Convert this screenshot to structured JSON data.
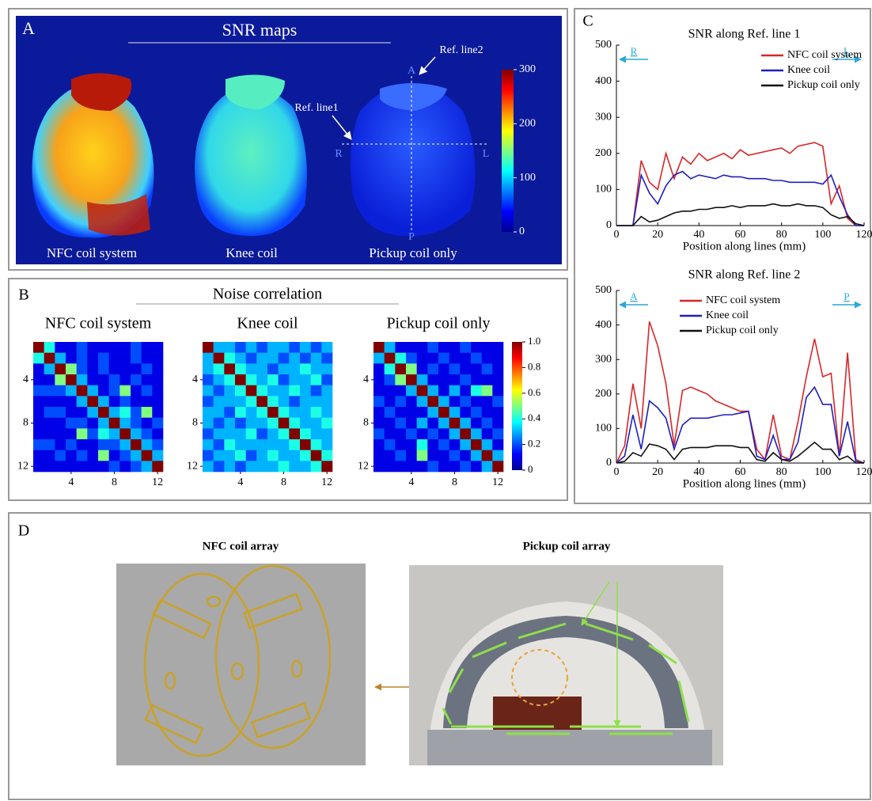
{
  "panel_a": {
    "label": "A",
    "title": "SNR maps",
    "image_labels": [
      "NFC coil system",
      "Knee coil",
      "Pickup coil only"
    ],
    "ref_line1": "Ref. line1",
    "ref_line2": "Ref. line2",
    "directions": [
      "A",
      "P",
      "R",
      "L"
    ],
    "colorbar": {
      "clim": [
        0,
        300
      ],
      "ticks": [
        0,
        100,
        200,
        300
      ]
    }
  },
  "panel_b": {
    "label": "B",
    "title": "Noise correlation",
    "colorbar": {
      "clim": [
        0,
        1
      ],
      "ticks": [
        0,
        0.2,
        0.4,
        0.6,
        0.8,
        {
          "value": 1,
          "label": "1.0"
        }
      ]
    }
  },
  "panel_c": {
    "label": "C"
  },
  "panel_d": {
    "label": "D",
    "left_title": "NFC coil array",
    "right_title": "Pickup coil array"
  },
  "chart_data": [
    {
      "type": "heatmap",
      "title": "NFC coil system",
      "xlim": [
        0.5,
        12.5
      ],
      "ylim": [
        0.5,
        12.5
      ],
      "xticks": [
        4,
        8,
        12
      ],
      "yticks": [
        4,
        8,
        12
      ],
      "values": [
        [
          1,
          0.4,
          0.1,
          0.1,
          0.2,
          0.1,
          0.1,
          0.1,
          0.1,
          0.2,
          0.1,
          0.1
        ],
        [
          0.4,
          1,
          0.3,
          0.1,
          0.2,
          0.1,
          0.2,
          0.1,
          0.1,
          0.2,
          0.1,
          0.1
        ],
        [
          0.1,
          0.3,
          1,
          0.5,
          0.2,
          0.1,
          0.2,
          0.1,
          0.1,
          0.1,
          0.2,
          0.1
        ],
        [
          0.1,
          0.1,
          0.5,
          1,
          0.3,
          0.1,
          0.1,
          0.2,
          0.1,
          0.2,
          0.1,
          0.1
        ],
        [
          0.2,
          0.2,
          0.2,
          0.3,
          1,
          0.3,
          0.1,
          0.2,
          0.5,
          0.1,
          0.2,
          0.1
        ],
        [
          0.1,
          0.1,
          0.1,
          0.1,
          0.3,
          1,
          0.3,
          0.1,
          0.2,
          0.1,
          0.1,
          0.1
        ],
        [
          0.1,
          0.2,
          0.2,
          0.1,
          0.1,
          0.3,
          1,
          0.3,
          0.4,
          0.2,
          0.5,
          0.1
        ],
        [
          0.1,
          0.1,
          0.1,
          0.2,
          0.2,
          0.1,
          0.3,
          1,
          0.3,
          0.2,
          0.1,
          0.2
        ],
        [
          0.1,
          0.1,
          0.1,
          0.1,
          0.5,
          0.2,
          0.4,
          0.3,
          1,
          0.3,
          0.2,
          0.1
        ],
        [
          0.2,
          0.2,
          0.1,
          0.2,
          0.1,
          0.1,
          0.2,
          0.2,
          0.3,
          1,
          0.3,
          0.2
        ],
        [
          0.1,
          0.1,
          0.2,
          0.1,
          0.2,
          0.1,
          0.5,
          0.1,
          0.2,
          0.3,
          1,
          0.3
        ],
        [
          0.1,
          0.1,
          0.1,
          0.1,
          0.1,
          0.1,
          0.1,
          0.2,
          0.1,
          0.2,
          0.3,
          1
        ]
      ]
    },
    {
      "type": "heatmap",
      "title": "Knee coil",
      "xlim": [
        0.5,
        12.5
      ],
      "ylim": [
        0.5,
        12.5
      ],
      "xticks": [
        4,
        8,
        12
      ],
      "yticks": [
        4,
        8,
        12
      ],
      "values": [
        [
          1,
          0.3,
          0.3,
          0.2,
          0.3,
          0.2,
          0.3,
          0.3,
          0.2,
          0.3,
          0.2,
          0.3
        ],
        [
          0.3,
          1,
          0.4,
          0.3,
          0.2,
          0.3,
          0.3,
          0.2,
          0.3,
          0.2,
          0.3,
          0.2
        ],
        [
          0.3,
          0.4,
          1,
          0.4,
          0.3,
          0.3,
          0.2,
          0.3,
          0.3,
          0.4,
          0.3,
          0.3
        ],
        [
          0.2,
          0.3,
          0.4,
          1,
          0.4,
          0.3,
          0.4,
          0.2,
          0.3,
          0.3,
          0.4,
          0.2
        ],
        [
          0.3,
          0.2,
          0.3,
          0.4,
          1,
          0.4,
          0.3,
          0.3,
          0.4,
          0.3,
          0.2,
          0.3
        ],
        [
          0.2,
          0.3,
          0.3,
          0.3,
          0.4,
          1,
          0.4,
          0.3,
          0.2,
          0.3,
          0.3,
          0.3
        ],
        [
          0.3,
          0.3,
          0.2,
          0.4,
          0.3,
          0.4,
          1,
          0.4,
          0.3,
          0.3,
          0.4,
          0.3
        ],
        [
          0.3,
          0.2,
          0.3,
          0.2,
          0.3,
          0.3,
          0.4,
          1,
          0.4,
          0.3,
          0.3,
          0.4
        ],
        [
          0.2,
          0.3,
          0.3,
          0.3,
          0.4,
          0.2,
          0.3,
          0.4,
          1,
          0.4,
          0.3,
          0.3
        ],
        [
          0.3,
          0.2,
          0.4,
          0.3,
          0.3,
          0.3,
          0.3,
          0.3,
          0.4,
          1,
          0.4,
          0.3
        ],
        [
          0.2,
          0.3,
          0.3,
          0.4,
          0.2,
          0.3,
          0.4,
          0.3,
          0.3,
          0.4,
          1,
          0.4
        ],
        [
          0.3,
          0.2,
          0.3,
          0.2,
          0.3,
          0.3,
          0.3,
          0.4,
          0.3,
          0.3,
          0.4,
          1
        ]
      ]
    },
    {
      "type": "heatmap",
      "title": "Pickup coil only",
      "xlim": [
        0.5,
        12.5
      ],
      "ylim": [
        0.5,
        12.5
      ],
      "xticks": [
        4,
        8,
        12
      ],
      "yticks": [
        4,
        8,
        12
      ],
      "values": [
        [
          1,
          0.3,
          0.1,
          0.1,
          0.1,
          0.2,
          0.1,
          0.1,
          0.2,
          0.1,
          0.1,
          0.1
        ],
        [
          0.3,
          1,
          0.4,
          0.2,
          0.1,
          0.1,
          0.2,
          0.1,
          0.1,
          0.2,
          0.1,
          0.1
        ],
        [
          0.1,
          0.4,
          1,
          0.5,
          0.1,
          0.2,
          0.1,
          0.2,
          0.1,
          0.1,
          0.2,
          0.1
        ],
        [
          0.1,
          0.2,
          0.5,
          1,
          0.3,
          0.1,
          0.1,
          0.1,
          0.2,
          0.1,
          0.1,
          0.1
        ],
        [
          0.1,
          0.1,
          0.1,
          0.3,
          1,
          0.3,
          0.1,
          0.3,
          0.1,
          0.4,
          0.5,
          0.1
        ],
        [
          0.2,
          0.1,
          0.2,
          0.1,
          0.3,
          1,
          0.3,
          0.1,
          0.2,
          0.1,
          0.1,
          0.2
        ],
        [
          0.1,
          0.2,
          0.1,
          0.1,
          0.1,
          0.3,
          1,
          0.3,
          0.1,
          0.2,
          0.1,
          0.1
        ],
        [
          0.1,
          0.1,
          0.2,
          0.1,
          0.3,
          0.1,
          0.3,
          1,
          0.3,
          0.1,
          0.2,
          0.1
        ],
        [
          0.2,
          0.1,
          0.1,
          0.2,
          0.1,
          0.2,
          0.1,
          0.3,
          1,
          0.3,
          0.1,
          0.2
        ],
        [
          0.1,
          0.2,
          0.1,
          0.1,
          0.4,
          0.1,
          0.2,
          0.1,
          0.3,
          1,
          0.3,
          0.1
        ],
        [
          0.1,
          0.1,
          0.2,
          0.1,
          0.5,
          0.1,
          0.1,
          0.2,
          0.1,
          0.3,
          1,
          0.3
        ],
        [
          0.1,
          0.1,
          0.1,
          0.1,
          0.1,
          0.2,
          0.1,
          0.1,
          0.2,
          0.1,
          0.3,
          1
        ]
      ]
    },
    {
      "type": "line",
      "title": "SNR along Ref. line 1",
      "xlabel": "Position along lines (mm)",
      "direction_labels": [
        "R",
        "L"
      ],
      "legend": "upper right",
      "xlim": [
        0,
        120
      ],
      "ylim": [
        0,
        500
      ],
      "xticks": [
        0,
        20,
        40,
        60,
        80,
        100,
        120
      ],
      "yticks": [
        0,
        100,
        200,
        300,
        400,
        500
      ],
      "x": [
        0,
        4,
        8,
        12,
        16,
        20,
        24,
        28,
        32,
        36,
        40,
        44,
        48,
        52,
        56,
        60,
        64,
        68,
        72,
        76,
        80,
        84,
        88,
        92,
        96,
        100,
        104,
        108,
        112,
        116,
        120
      ],
      "series": [
        {
          "name": "NFC coil system",
          "color": "#d62728",
          "values": [
            0,
            0,
            0,
            180,
            120,
            100,
            200,
            130,
            190,
            170,
            200,
            180,
            190,
            200,
            185,
            210,
            195,
            200,
            205,
            210,
            215,
            200,
            220,
            225,
            230,
            220,
            60,
            110,
            20,
            0,
            0
          ]
        },
        {
          "name": "Knee coil",
          "color": "#1f1fbf",
          "values": [
            0,
            0,
            0,
            140,
            90,
            60,
            110,
            140,
            150,
            130,
            140,
            135,
            130,
            140,
            135,
            135,
            130,
            130,
            130,
            125,
            125,
            120,
            120,
            120,
            120,
            115,
            140,
            80,
            30,
            0,
            0
          ]
        },
        {
          "name": "Pickup coil only",
          "color": "#111111",
          "values": [
            0,
            0,
            0,
            25,
            10,
            15,
            25,
            35,
            40,
            40,
            45,
            45,
            50,
            50,
            55,
            50,
            55,
            55,
            55,
            60,
            55,
            55,
            60,
            55,
            55,
            50,
            30,
            20,
            25,
            5,
            0
          ]
        }
      ]
    },
    {
      "type": "line",
      "title": "SNR along Ref. line 2",
      "xlabel": "Position along lines (mm)",
      "direction_labels": [
        "A",
        "P"
      ],
      "legend": "upper center",
      "xlim": [
        0,
        120
      ],
      "ylim": [
        0,
        500
      ],
      "xticks": [
        0,
        20,
        40,
        60,
        80,
        100,
        120
      ],
      "yticks": [
        0,
        100,
        200,
        300,
        400,
        500
      ],
      "x": [
        0,
        4,
        8,
        12,
        16,
        20,
        24,
        28,
        32,
        36,
        40,
        44,
        48,
        52,
        56,
        60,
        64,
        68,
        72,
        76,
        80,
        84,
        88,
        92,
        96,
        100,
        104,
        108,
        112,
        116,
        120
      ],
      "series": [
        {
          "name": "NFC coil system",
          "color": "#d62728",
          "values": [
            0,
            50,
            230,
            100,
            410,
            340,
            230,
            50,
            210,
            220,
            210,
            200,
            180,
            170,
            160,
            150,
            150,
            40,
            10,
            140,
            20,
            10,
            120,
            250,
            360,
            250,
            260,
            20,
            320,
            10,
            0
          ]
        },
        {
          "name": "Knee coil",
          "color": "#1f1fbf",
          "values": [
            0,
            20,
            140,
            40,
            180,
            160,
            130,
            40,
            110,
            130,
            130,
            130,
            135,
            140,
            140,
            145,
            150,
            20,
            10,
            80,
            10,
            10,
            60,
            190,
            220,
            170,
            170,
            20,
            120,
            5,
            0
          ]
        },
        {
          "name": "Pickup coil only",
          "color": "#111111",
          "values": [
            0,
            5,
            30,
            20,
            55,
            50,
            40,
            10,
            40,
            45,
            45,
            45,
            50,
            50,
            50,
            45,
            45,
            10,
            5,
            30,
            10,
            5,
            20,
            40,
            60,
            40,
            40,
            10,
            20,
            0,
            0
          ]
        }
      ]
    }
  ]
}
